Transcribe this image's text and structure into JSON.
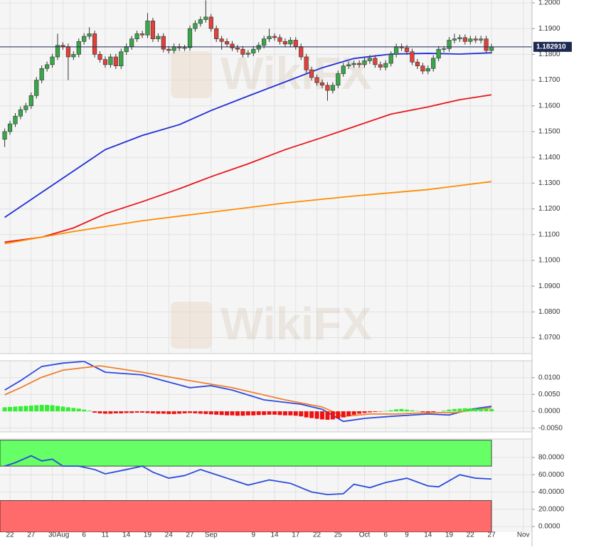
{
  "watermark": "WikiFX",
  "chart_data": [
    {
      "type": "candlestick",
      "ylim": [
        1.0638,
        1.2011
      ],
      "yticks": [
        {
          "value": 1.2,
          "label": "1.2000"
        },
        {
          "value": 1.19,
          "label": "1.1900"
        },
        {
          "value": 1.18,
          "label": "1.1800"
        },
        {
          "value": 1.17,
          "label": "1.1700"
        },
        {
          "value": 1.16,
          "label": "1.1600"
        },
        {
          "value": 1.15,
          "label": "1.1500"
        },
        {
          "value": 1.14,
          "label": "1.1400"
        },
        {
          "value": 1.13,
          "label": "1.1300"
        },
        {
          "value": 1.12,
          "label": "1.1200"
        },
        {
          "value": 1.11,
          "label": "1.1100"
        },
        {
          "value": 1.1,
          "label": "1.1000"
        },
        {
          "value": 1.09,
          "label": "1.0900"
        },
        {
          "value": 1.08,
          "label": "1.0800"
        },
        {
          "value": 1.07,
          "label": "1.0700"
        }
      ],
      "grid": true,
      "up_color": "#3aa64a",
      "down_color": "#e2403a",
      "candles": {
        "open": [
          1.147,
          1.15,
          1.153,
          1.156,
          1.1585,
          1.16,
          1.164,
          1.17,
          1.1745,
          1.176,
          1.179,
          1.1835,
          1.183,
          1.179,
          1.18,
          1.185,
          1.187,
          1.188,
          1.18,
          1.178,
          1.176,
          1.179,
          1.1755,
          1.181,
          1.183,
          1.186,
          1.188,
          1.1875,
          1.193,
          1.186,
          1.187,
          1.182,
          1.1815,
          1.183,
          1.1825,
          1.1826,
          1.19,
          1.192,
          1.1935,
          1.1945,
          1.19,
          1.186,
          1.185,
          1.184,
          1.1825,
          1.182,
          1.18,
          1.1805,
          1.182,
          1.1835,
          1.186,
          1.187,
          1.1865,
          1.185,
          1.184,
          1.1855,
          1.183,
          1.179,
          1.174,
          1.171,
          1.169,
          1.168,
          1.166,
          1.168,
          1.1725,
          1.1755,
          1.176,
          1.1765,
          1.176,
          1.1775,
          1.1785,
          1.176,
          1.175,
          1.1765,
          1.18,
          1.183,
          1.1825,
          1.181,
          1.177,
          1.1755,
          1.1735,
          1.1745,
          1.1785,
          1.182,
          1.1822,
          1.1855,
          1.186,
          1.1865,
          1.185,
          1.186,
          1.1855,
          1.186,
          1.1815
        ],
        "high": [
          1.1512,
          1.1542,
          1.1572,
          1.1597,
          1.1612,
          1.1652,
          1.1712,
          1.1757,
          1.1772,
          1.1802,
          1.188,
          1.1847,
          1.1842,
          1.1812,
          1.1862,
          1.1882,
          1.1905,
          1.1892,
          1.1812,
          1.1792,
          1.1802,
          1.1802,
          1.1822,
          1.1842,
          1.1872,
          1.1892,
          1.1892,
          1.196,
          1.1942,
          1.1882,
          1.1882,
          1.1832,
          1.1842,
          1.1842,
          1.1837,
          1.1912,
          1.1932,
          1.1947,
          1.201,
          1.1957,
          1.1912,
          1.1872,
          1.1862,
          1.1852,
          1.1837,
          1.1832,
          1.1817,
          1.1832,
          1.1847,
          1.1872,
          1.19,
          1.1882,
          1.1877,
          1.1862,
          1.1867,
          1.1867,
          1.1842,
          1.1802,
          1.1752,
          1.1722,
          1.1702,
          1.1692,
          1.1692,
          1.1737,
          1.1767,
          1.1772,
          1.1777,
          1.1777,
          1.1787,
          1.1797,
          1.1797,
          1.1772,
          1.1777,
          1.1812,
          1.1842,
          1.1842,
          1.1837,
          1.1822,
          1.1782,
          1.1767,
          1.1757,
          1.1797,
          1.1832,
          1.1832,
          1.1867,
          1.188,
          1.1877,
          1.1877,
          1.1872,
          1.1872,
          1.1872,
          1.1872,
          1.1841
        ],
        "low": [
          1.144,
          1.1488,
          1.1518,
          1.1548,
          1.1573,
          1.1588,
          1.1628,
          1.1688,
          1.1733,
          1.1748,
          1.1778,
          1.1818,
          1.17,
          1.1778,
          1.1788,
          1.1838,
          1.1858,
          1.1788,
          1.1768,
          1.1748,
          1.1748,
          1.1743,
          1.1743,
          1.1798,
          1.1818,
          1.1848,
          1.1863,
          1.1863,
          1.1848,
          1.1848,
          1.1808,
          1.1803,
          1.1803,
          1.1813,
          1.1813,
          1.1814,
          1.1888,
          1.1908,
          1.1923,
          1.1888,
          1.1848,
          1.1818,
          1.1828,
          1.1813,
          1.1808,
          1.1788,
          1.1788,
          1.1793,
          1.1808,
          1.1823,
          1.1848,
          1.1853,
          1.1838,
          1.1828,
          1.1828,
          1.1818,
          1.1778,
          1.1728,
          1.1698,
          1.1678,
          1.1668,
          1.162,
          1.1648,
          1.1668,
          1.1713,
          1.1743,
          1.1748,
          1.1748,
          1.1748,
          1.1763,
          1.1748,
          1.1738,
          1.1738,
          1.1753,
          1.1788,
          1.1813,
          1.1798,
          1.1758,
          1.1743,
          1.1723,
          1.1723,
          1.1733,
          1.1773,
          1.1808,
          1.181,
          1.1843,
          1.1848,
          1.1838,
          1.1838,
          1.1843,
          1.1843,
          1.1803,
          1.1803
        ],
        "close": [
          1.15,
          1.153,
          1.156,
          1.1585,
          1.16,
          1.164,
          1.17,
          1.1745,
          1.176,
          1.179,
          1.1835,
          1.183,
          1.179,
          1.18,
          1.185,
          1.187,
          1.188,
          1.18,
          1.178,
          1.176,
          1.179,
          1.1755,
          1.181,
          1.183,
          1.186,
          1.188,
          1.1875,
          1.193,
          1.186,
          1.187,
          1.182,
          1.1815,
          1.183,
          1.1825,
          1.1826,
          1.19,
          1.192,
          1.1935,
          1.1945,
          1.19,
          1.186,
          1.185,
          1.184,
          1.1825,
          1.182,
          1.18,
          1.1805,
          1.182,
          1.1835,
          1.186,
          1.187,
          1.1865,
          1.185,
          1.184,
          1.1855,
          1.183,
          1.179,
          1.174,
          1.171,
          1.169,
          1.168,
          1.166,
          1.168,
          1.1725,
          1.1755,
          1.176,
          1.1765,
          1.176,
          1.1775,
          1.1785,
          1.176,
          1.175,
          1.1765,
          1.18,
          1.183,
          1.1825,
          1.181,
          1.177,
          1.1755,
          1.1735,
          1.1745,
          1.1785,
          1.182,
          1.1822,
          1.1855,
          1.186,
          1.1865,
          1.185,
          1.186,
          1.1855,
          1.186,
          1.1815,
          1.18291
        ]
      },
      "series": [
        {
          "color": "#1f2fd6",
          "x": [
            0,
            7,
            13,
            19,
            26,
            33,
            39,
            46,
            53,
            60,
            66,
            73,
            80,
            86,
            92
          ],
          "values": [
            1.1167,
            1.1264,
            1.1347,
            1.143,
            1.1485,
            1.1527,
            1.1582,
            1.1638,
            1.1693,
            1.1748,
            1.1784,
            1.1801,
            1.1804,
            1.1801,
            1.1806
          ]
        },
        {
          "color": "#e8151b",
          "x": [
            0,
            7,
            13,
            19,
            26,
            33,
            39,
            46,
            53,
            60,
            66,
            73,
            80,
            86,
            92
          ],
          "values": [
            1.1071,
            1.109,
            1.1126,
            1.1181,
            1.1228,
            1.1278,
            1.1325,
            1.1375,
            1.143,
            1.1477,
            1.1519,
            1.1568,
            1.1596,
            1.1624,
            1.1643
          ]
        },
        {
          "color": "#ff8c00",
          "x": [
            0,
            13,
            26,
            39,
            53,
            66,
            80,
            92
          ],
          "values": [
            1.1065,
            1.1112,
            1.1154,
            1.1187,
            1.1223,
            1.125,
            1.1275,
            1.1306
          ]
        }
      ],
      "last_price": {
        "value": 1.18291,
        "label": "1.182910",
        "color": "#1d2951"
      }
    },
    {
      "type": "macd",
      "ylim": [
        -0.0061,
        0.015
      ],
      "yticks": [
        {
          "value": 0.01,
          "label": "0.0100"
        },
        {
          "value": 0.005,
          "label": "0.0050"
        },
        {
          "value": 0,
          "label": "0.0000"
        },
        {
          "value": -0.005,
          "label": "-0.0050"
        }
      ],
      "grid": true,
      "series": [
        {
          "kind": "line",
          "color": "#2d4be0",
          "x": [
            0,
            3,
            7,
            11,
            15,
            19,
            26,
            30,
            35,
            39,
            43,
            49,
            56,
            60,
            64,
            68,
            73,
            80,
            84,
            88,
            92
          ],
          "values": [
            0.0063,
            0.0091,
            0.0133,
            0.0143,
            0.0148,
            0.0116,
            0.0108,
            0.0091,
            0.007,
            0.0076,
            0.0063,
            0.0034,
            0.0021,
            0.0006,
            -0.003,
            -0.0021,
            -0.0015,
            -0.0008,
            -0.0011,
            0.0006,
            0.0015
          ]
        },
        {
          "kind": "line",
          "color": "#f08030",
          "x": [
            0,
            3,
            7,
            11,
            18,
            26,
            35,
            43,
            53,
            60,
            64,
            69,
            74,
            80,
            85,
            92
          ],
          "values": [
            0.0049,
            0.007,
            0.0101,
            0.0122,
            0.0135,
            0.0116,
            0.0091,
            0.007,
            0.0034,
            0.0013,
            -0.0015,
            -0.0008,
            -0.0008,
            -0.0004,
            -0.0004,
            0.0011
          ]
        },
        {
          "kind": "bar",
          "color": "#33ee33",
          "negative_color": "#ee1111",
          "values": [
            0.0012,
            0.0013,
            0.0014,
            0.0015,
            0.0016,
            0.0017,
            0.0018,
            0.0019,
            0.0019,
            0.0018,
            0.0016,
            0.0014,
            0.0012,
            0.001,
            0.0008,
            0.0005,
            0.0002,
            -0.0004,
            -0.0006,
            -0.0007,
            -0.0007,
            -0.0006,
            -0.0006,
            -0.0005,
            -0.0005,
            -0.0004,
            -0.0004,
            -0.0005,
            -0.0006,
            -0.0007,
            -0.0007,
            -0.0008,
            -0.0008,
            -0.0007,
            -0.0006,
            -0.0005,
            -0.0006,
            -0.0007,
            -0.0008,
            -0.0009,
            -0.001,
            -0.0011,
            -0.0012,
            -0.0012,
            -0.0013,
            -0.0013,
            -0.0012,
            -0.0012,
            -0.0011,
            -0.0011,
            -0.001,
            -0.001,
            -0.0011,
            -0.0012,
            -0.0012,
            -0.0013,
            -0.0015,
            -0.0018,
            -0.002,
            -0.0022,
            -0.0024,
            -0.0025,
            -0.0024,
            -0.0021,
            -0.0018,
            -0.0014,
            -0.001,
            -0.0007,
            -0.0005,
            -0.0003,
            -0.0002,
            -0.0001,
            0.0001,
            0.0003,
            0.0006,
            0.0007,
            0.0005,
            0.0003,
            0.0001,
            -0.0002,
            -0.0003,
            -0.0002,
            0.0,
            0.0002,
            0.0005,
            0.0007,
            0.0008,
            0.0009,
            0.0009,
            0.0008,
            0.0008,
            0.0007,
            0.0007
          ]
        }
      ]
    },
    {
      "type": "rsi",
      "ylim": [
        -6.6,
        101.4
      ],
      "yticks": [
        {
          "value": 80,
          "label": "80.0000"
        },
        {
          "value": 60,
          "label": "60.0000"
        },
        {
          "value": 40,
          "label": "40.0000"
        },
        {
          "value": 20,
          "label": "20.0000"
        },
        {
          "value": 0,
          "label": "0.0000"
        }
      ],
      "grid": true,
      "xlim": [
        0,
        100
      ],
      "xticks": [
        {
          "value": 1,
          "label": "22"
        },
        {
          "value": 5,
          "label": "27"
        },
        {
          "value": 9,
          "label": "30"
        },
        {
          "value": 11,
          "label": "Aug"
        },
        {
          "value": 15,
          "label": "6"
        },
        {
          "value": 19,
          "label": "11"
        },
        {
          "value": 23,
          "label": "14"
        },
        {
          "value": 27,
          "label": "19"
        },
        {
          "value": 31,
          "label": "24"
        },
        {
          "value": 35,
          "label": "27"
        },
        {
          "value": 39,
          "label": "Sep"
        },
        {
          "value": 47,
          "label": "9"
        },
        {
          "value": 51,
          "label": "14"
        },
        {
          "value": 55,
          "label": "17"
        },
        {
          "value": 59,
          "label": "22"
        },
        {
          "value": 63,
          "label": "25"
        },
        {
          "value": 68,
          "label": "Oct"
        },
        {
          "value": 72,
          "label": "6"
        },
        {
          "value": 76,
          "label": "9"
        },
        {
          "value": 80,
          "label": "14"
        },
        {
          "value": 84,
          "label": "19"
        },
        {
          "value": 88,
          "label": "22"
        },
        {
          "value": 92,
          "label": "27"
        },
        {
          "value": 98,
          "label": "Nov"
        }
      ],
      "bands": [
        {
          "range": [
            70,
            100
          ],
          "color": "#66ff66"
        },
        {
          "range": [
            -6.6,
            30
          ],
          "color": "#ff6b6b"
        }
      ],
      "series": [
        {
          "color": "#2b4bd8",
          "x": [
            0,
            2,
            5,
            7,
            9,
            11,
            14,
            17,
            19,
            23,
            26,
            28,
            31,
            34,
            37,
            39,
            42,
            46,
            50,
            54,
            58,
            61,
            64,
            66,
            69,
            72,
            76,
            80,
            82,
            86,
            89,
            92
          ],
          "values": [
            70,
            74,
            82,
            76,
            78,
            70,
            70,
            66,
            61,
            66,
            70,
            63,
            56,
            59,
            66,
            62,
            56,
            48,
            54,
            50,
            40,
            37,
            38,
            49,
            45,
            51,
            56,
            47,
            46,
            60,
            56,
            55
          ]
        }
      ]
    }
  ]
}
